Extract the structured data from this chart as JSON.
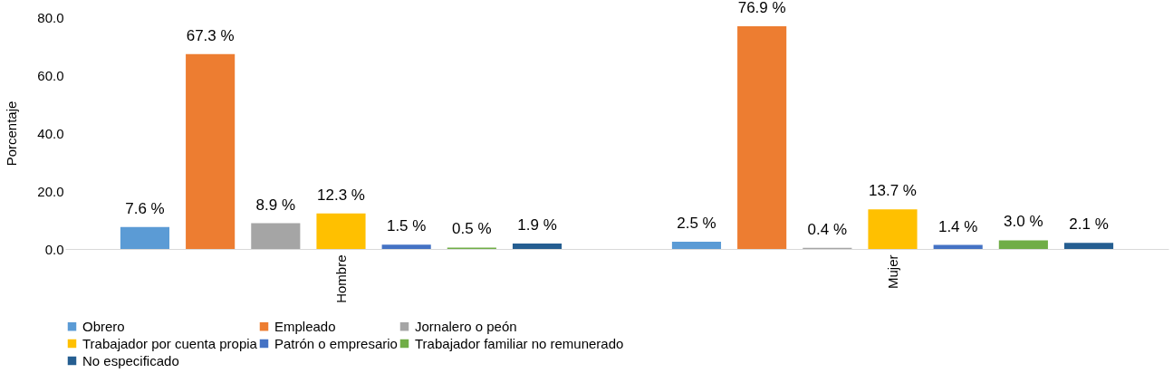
{
  "chart_data": {
    "type": "bar",
    "ylabel": "Porcentaje",
    "categories": [
      "Hombre",
      "Mujer"
    ],
    "series": [
      {
        "name": "Obrero",
        "color": "#5b9bd5",
        "values": [
          7.6,
          2.5
        ],
        "value_labels": [
          "7.6 %",
          "2.5 %"
        ]
      },
      {
        "name": "Empleado",
        "color": "#ed7d31",
        "values": [
          67.3,
          76.9
        ],
        "value_labels": [
          "67.3 %",
          "76.9 %"
        ]
      },
      {
        "name": "Jornalero o peón",
        "color": "#a5a5a5",
        "values": [
          8.9,
          0.4
        ],
        "value_labels": [
          "8.9 %",
          "0.4 %"
        ]
      },
      {
        "name": "Trabajador por cuenta propia",
        "color": "#ffc000",
        "values": [
          12.3,
          13.7
        ],
        "value_labels": [
          "12.3 %",
          "13.7 %"
        ]
      },
      {
        "name": "Patrón o empresario",
        "color": "#4472c4",
        "values": [
          1.5,
          1.4
        ],
        "value_labels": [
          "1.5 %",
          "1.4 %"
        ]
      },
      {
        "name": "Trabajador familiar no remunerado",
        "color": "#70ad47",
        "values": [
          0.5,
          3.0
        ],
        "value_labels": [
          "0.5 %",
          "3.0 %"
        ]
      },
      {
        "name": "No especificado",
        "color": "#255e91",
        "values": [
          1.9,
          2.1
        ],
        "value_labels": [
          "1.9 %",
          "2.1 %"
        ]
      }
    ],
    "ylim": [
      0,
      80
    ],
    "yticks": [
      {
        "value": 0,
        "label": "0.0"
      },
      {
        "value": 20,
        "label": "20.0"
      },
      {
        "value": 40,
        "label": "40.0"
      },
      {
        "value": 60,
        "label": "60.0"
      },
      {
        "value": 80,
        "label": "80.0"
      }
    ],
    "grid": false,
    "legend": "bottom"
  }
}
